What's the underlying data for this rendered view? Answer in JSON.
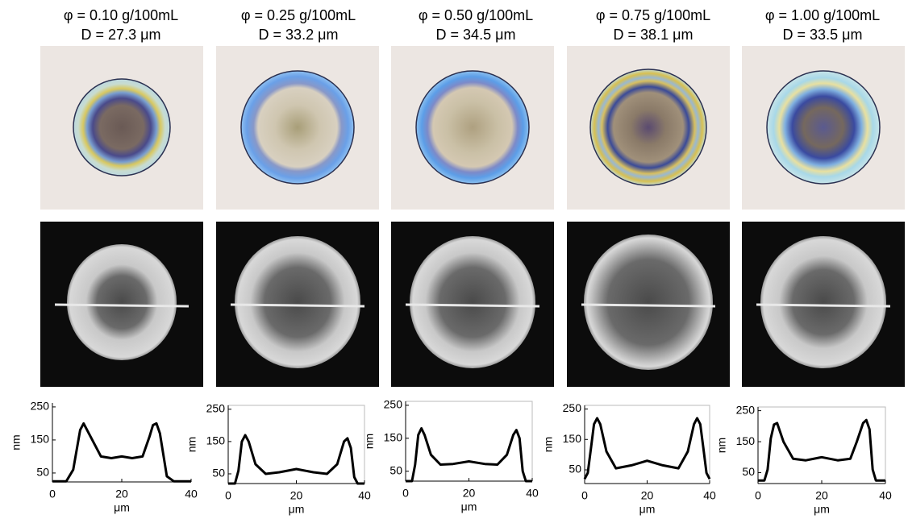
{
  "chart_data": [
    {
      "type": "line",
      "title": "φ = 0.10 g/100mL",
      "subtitle": "D = 27.3 μm",
      "x_label": "μm",
      "y_label": "nm",
      "color": "#000000",
      "x": [
        0,
        4,
        6,
        8,
        9,
        11,
        14,
        17,
        20,
        23,
        26,
        28,
        29,
        30,
        31,
        33,
        35,
        40
      ],
      "values": [
        25,
        25,
        60,
        180,
        200,
        160,
        100,
        95,
        100,
        95,
        100,
        160,
        195,
        200,
        170,
        40,
        25,
        25
      ],
      "xlim": [
        0,
        40
      ],
      "ylim": [
        23,
        262
      ],
      "xticks": [
        0,
        20,
        40
      ],
      "yticks": [
        50,
        150,
        250
      ],
      "box": false
    },
    {
      "type": "line",
      "title": "φ = 0.25 g/100mL",
      "subtitle": "D = 33.2 μm",
      "x_label": "μm",
      "y_label": "nm",
      "color": "#000000",
      "x": [
        0,
        2,
        3,
        4,
        5,
        6,
        8,
        11,
        15,
        20,
        25,
        29,
        32,
        34,
        35,
        36,
        37,
        38,
        40
      ],
      "values": [
        20,
        20,
        60,
        150,
        170,
        150,
        80,
        50,
        55,
        65,
        55,
        50,
        80,
        150,
        160,
        130,
        40,
        20,
        20
      ],
      "xlim": [
        0,
        40
      ],
      "ylim": [
        20,
        262
      ],
      "xticks": [
        0,
        20,
        40
      ],
      "yticks": [
        50,
        150,
        250
      ],
      "box": true
    },
    {
      "type": "line",
      "title": "φ = 0.50 g/100mL",
      "subtitle": "D = 34.5 μm",
      "x_label": "μm",
      "y_label": "nm",
      "color": "#000000",
      "x": [
        0,
        2,
        3,
        4,
        5,
        6,
        8,
        11,
        15,
        20,
        25,
        29,
        32,
        34,
        35,
        36,
        37,
        38,
        40
      ],
      "values": [
        20,
        20,
        70,
        160,
        180,
        160,
        100,
        70,
        72,
        80,
        72,
        70,
        100,
        160,
        175,
        150,
        50,
        20,
        20
      ],
      "xlim": [
        0,
        40
      ],
      "ylim": [
        20,
        262
      ],
      "xticks": [
        0,
        20,
        40
      ],
      "yticks": [
        50,
        150,
        250
      ],
      "box": true
    },
    {
      "type": "line",
      "title": "φ = 0.75 g/100mL",
      "subtitle": "D = 38.1 μm",
      "x_label": "μm",
      "y_label": "nm",
      "color": "#000000",
      "x": [
        0,
        1,
        2,
        3,
        4,
        5,
        7,
        10,
        15,
        20,
        25,
        30,
        33,
        35,
        36,
        37,
        38,
        39,
        40
      ],
      "values": [
        20,
        40,
        120,
        200,
        220,
        200,
        110,
        55,
        65,
        80,
        65,
        55,
        110,
        200,
        220,
        200,
        120,
        40,
        20
      ],
      "xlim": [
        0,
        40
      ],
      "ylim": [
        5,
        262
      ],
      "xticks": [
        0,
        20,
        40
      ],
      "yticks": [
        50,
        150,
        250
      ],
      "box": true
    },
    {
      "type": "line",
      "title": "φ = 1.00 g/100mL",
      "subtitle": "D = 33.5 μm",
      "x_label": "μm",
      "y_label": "nm",
      "color": "#000000",
      "x": [
        0,
        2,
        3,
        4,
        5,
        6,
        8,
        11,
        15,
        20,
        25,
        29,
        31,
        33,
        34,
        35,
        36,
        37,
        40
      ],
      "values": [
        25,
        25,
        60,
        160,
        205,
        210,
        150,
        95,
        90,
        100,
        90,
        95,
        150,
        210,
        220,
        190,
        60,
        25,
        25
      ],
      "xlim": [
        0,
        40
      ],
      "ylim": [
        15,
        262
      ],
      "xticks": [
        0,
        20,
        40
      ],
      "yticks": [
        50,
        150,
        250
      ],
      "box": true
    }
  ]
}
